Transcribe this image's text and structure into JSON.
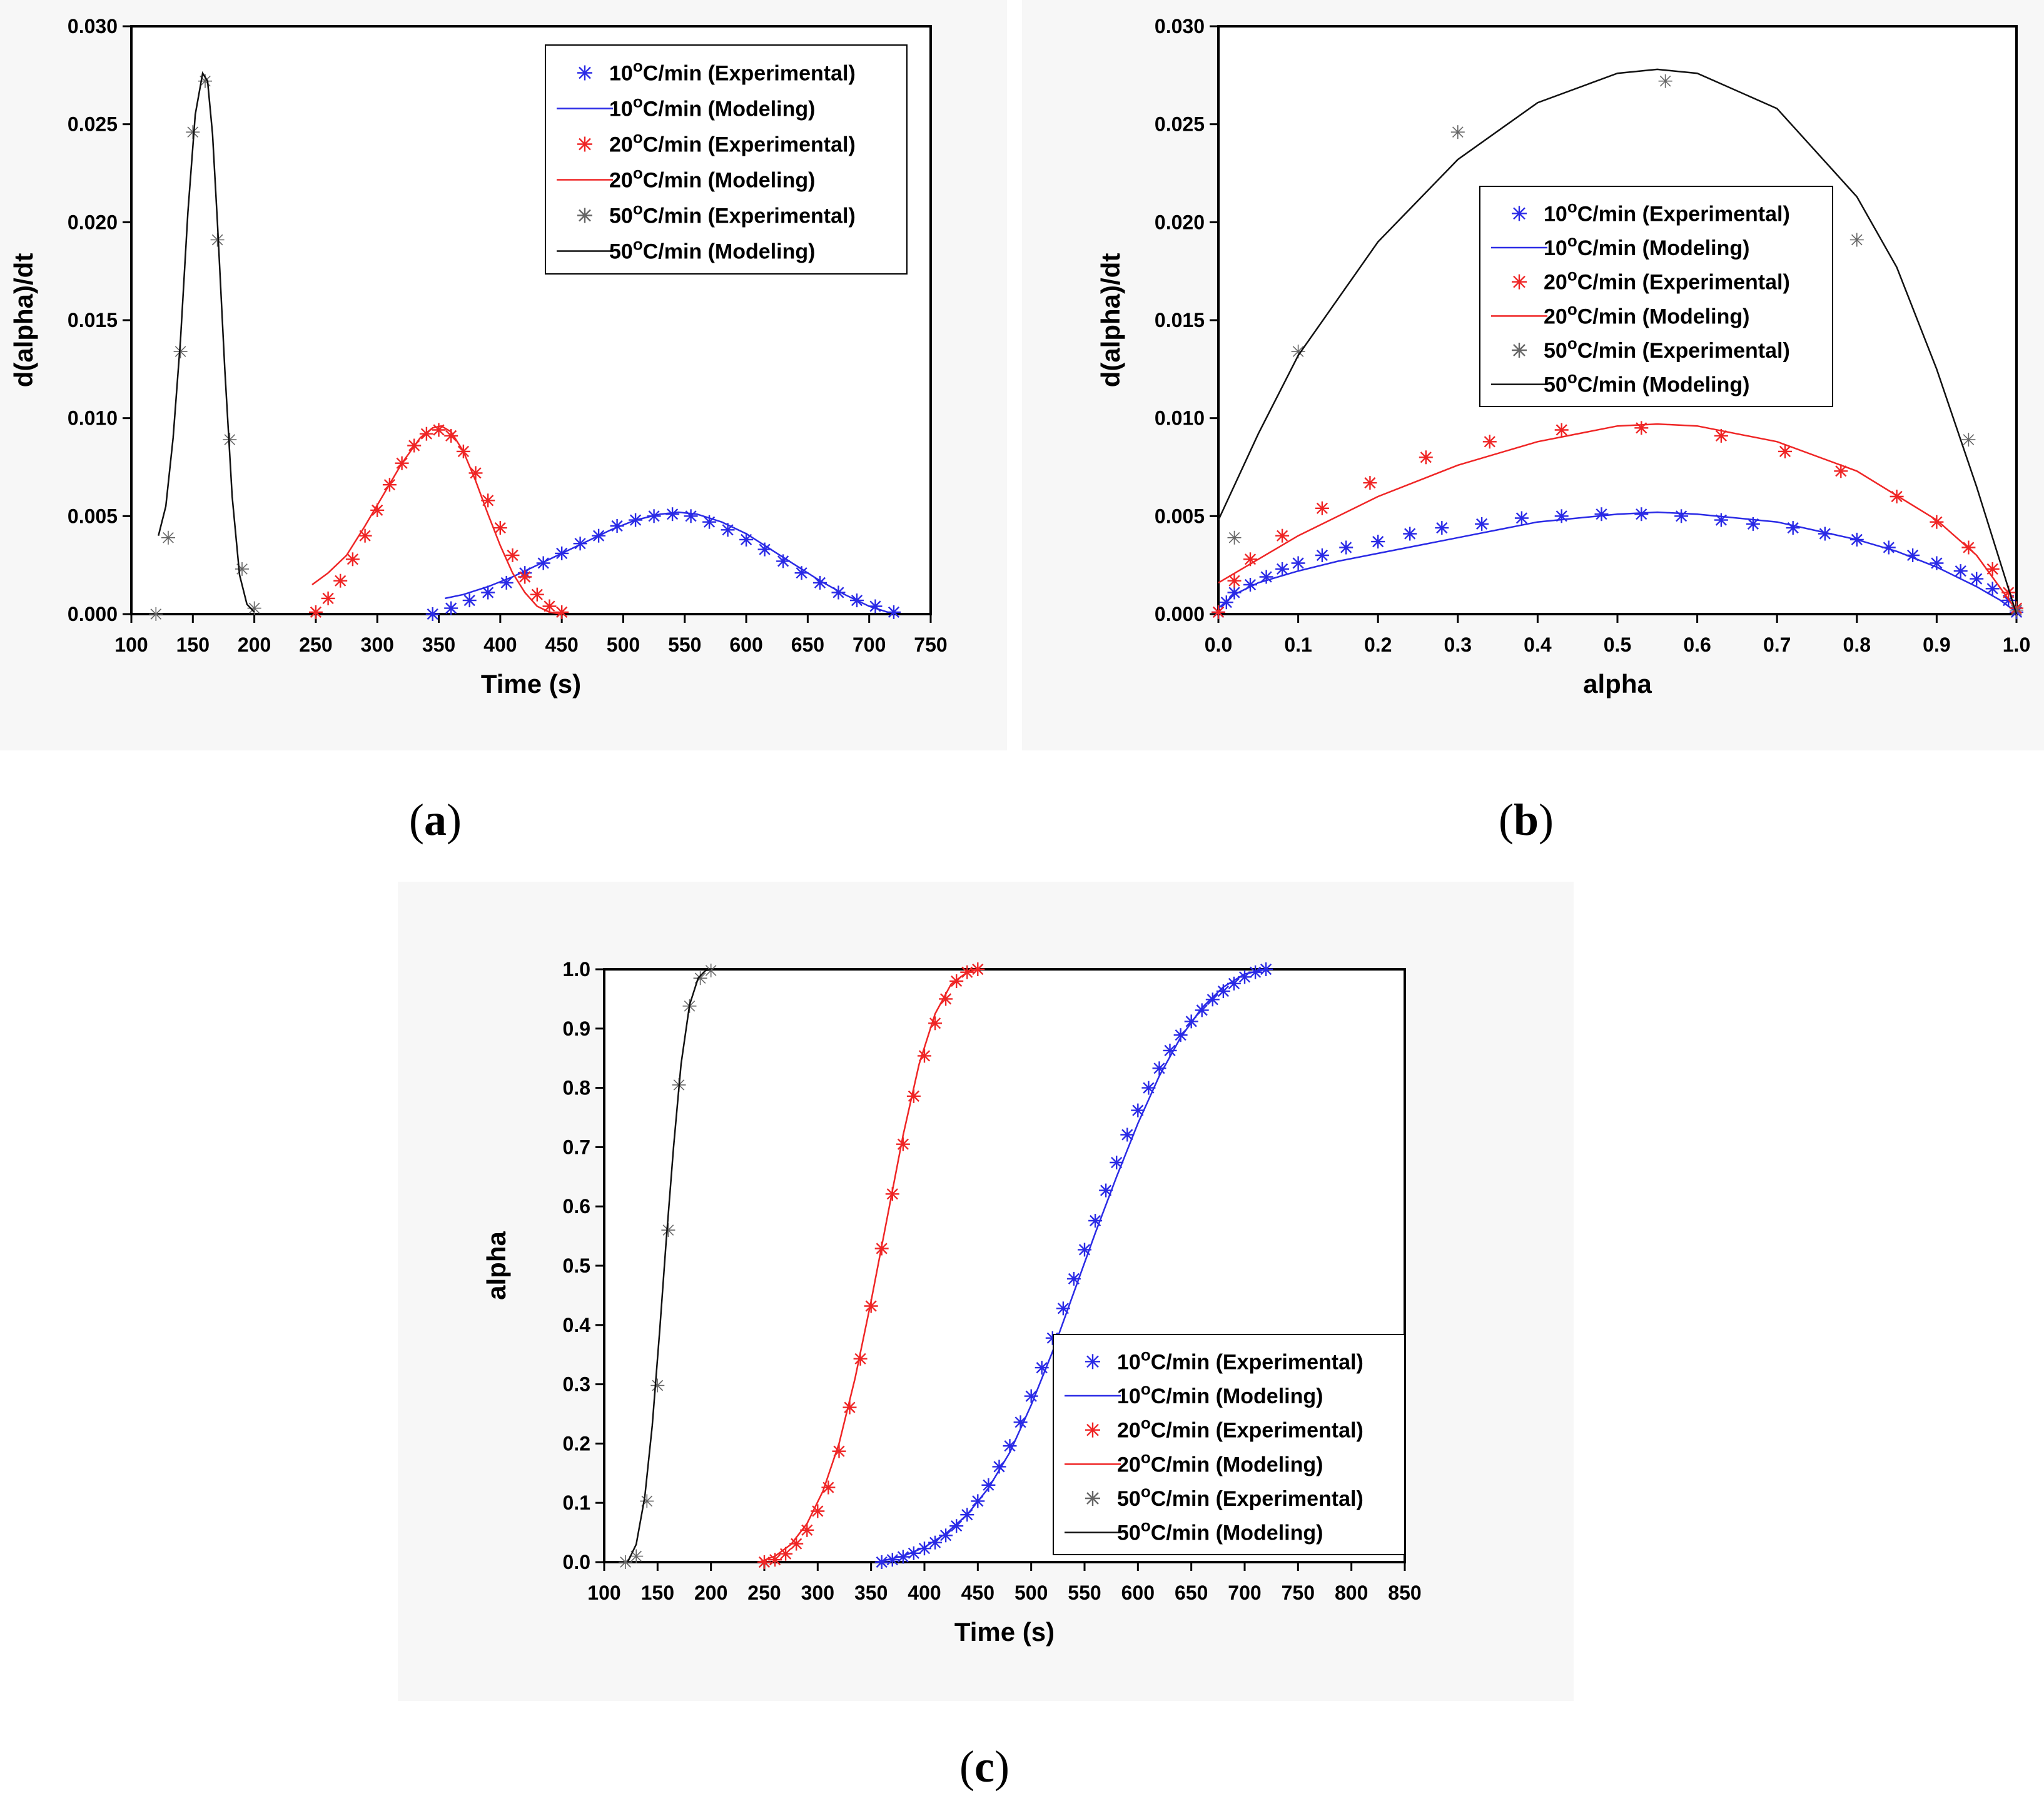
{
  "captions": {
    "a": "a",
    "b": "b",
    "c": "c"
  },
  "colors": {
    "blue": "#2a2ae6",
    "red": "#ef2525",
    "black": "#111111",
    "gray": "#666666"
  },
  "chart_data": [
    {
      "id": "a",
      "type": "line",
      "title": "",
      "xlabel": "Time (s)",
      "ylabel": "d(alpha)/dt",
      "xlim": [
        100,
        750
      ],
      "ylim": [
        0,
        0.03
      ],
      "xticks": [
        "100",
        "150",
        "200",
        "250",
        "300",
        "350",
        "400",
        "450",
        "500",
        "550",
        "600",
        "650",
        "700",
        "750"
      ],
      "yticks": [
        "0.000",
        "0.005",
        "0.010",
        "0.015",
        "0.020",
        "0.025",
        "0.030"
      ],
      "legend_position": "top-right",
      "series": [
        {
          "name": "10°C/min (Experimental)",
          "color": "blue",
          "kind": "marker",
          "x": [
            345,
            360,
            375,
            390,
            405,
            420,
            435,
            450,
            465,
            480,
            495,
            510,
            525,
            540,
            555,
            570,
            585,
            600,
            615,
            630,
            645,
            660,
            675,
            690,
            705,
            720
          ],
          "y": [
            0.0,
            0.0003,
            0.0007,
            0.0011,
            0.0016,
            0.0021,
            0.0026,
            0.0031,
            0.0036,
            0.004,
            0.0045,
            0.0048,
            0.005,
            0.0051,
            0.005,
            0.0047,
            0.0043,
            0.0038,
            0.0033,
            0.0027,
            0.0021,
            0.0016,
            0.0011,
            0.0007,
            0.0004,
            0.0001
          ]
        },
        {
          "name": "10°C/min (Modeling)",
          "color": "blue",
          "kind": "line",
          "x": [
            355,
            370,
            390,
            410,
            430,
            450,
            470,
            490,
            510,
            530,
            545,
            560,
            580,
            600,
            620,
            640,
            660,
            680,
            700,
            715
          ],
          "y": [
            0.0008,
            0.001,
            0.0014,
            0.0019,
            0.0025,
            0.0031,
            0.0037,
            0.0043,
            0.0048,
            0.0051,
            0.0052,
            0.0051,
            0.0047,
            0.0041,
            0.0033,
            0.0025,
            0.0017,
            0.001,
            0.0004,
            0.0001
          ]
        },
        {
          "name": "20°C/min (Experimental)",
          "color": "red",
          "kind": "marker",
          "x": [
            250,
            260,
            270,
            280,
            290,
            300,
            310,
            320,
            330,
            340,
            350,
            360,
            370,
            380,
            390,
            400,
            410,
            420,
            430,
            440,
            450
          ],
          "y": [
            0.0001,
            0.0008,
            0.0017,
            0.0028,
            0.004,
            0.0053,
            0.0066,
            0.0077,
            0.0086,
            0.0092,
            0.0094,
            0.0091,
            0.0083,
            0.0072,
            0.0058,
            0.0044,
            0.003,
            0.0019,
            0.001,
            0.0004,
            0.0001
          ]
        },
        {
          "name": "20°C/min (Modeling)",
          "color": "red",
          "kind": "line",
          "x": [
            247,
            260,
            275,
            290,
            305,
            320,
            335,
            345,
            352,
            360,
            370,
            380,
            390,
            400,
            410,
            420,
            430,
            440,
            450
          ],
          "y": [
            0.0015,
            0.0021,
            0.003,
            0.0045,
            0.0061,
            0.0077,
            0.009,
            0.0095,
            0.0096,
            0.0093,
            0.0083,
            0.0068,
            0.0051,
            0.0035,
            0.0021,
            0.0011,
            0.0004,
            0.0001,
            0.0
          ]
        },
        {
          "name": "50°C/min (Experimental)",
          "color": "gray",
          "kind": "marker",
          "x": [
            120,
            130,
            140,
            150,
            160,
            170,
            180,
            190,
            200
          ],
          "y": [
            0.0,
            0.0039,
            0.0134,
            0.0246,
            0.0272,
            0.0191,
            0.0089,
            0.0023,
            0.0003
          ]
        },
        {
          "name": "50°C/min (Modeling)",
          "color": "black",
          "kind": "line",
          "x": [
            122,
            128,
            134,
            140,
            146,
            152,
            158,
            162,
            166,
            170,
            176,
            182,
            188,
            194,
            200
          ],
          "y": [
            0.004,
            0.0055,
            0.009,
            0.014,
            0.0205,
            0.0255,
            0.0276,
            0.0272,
            0.0245,
            0.02,
            0.0125,
            0.006,
            0.002,
            0.0005,
            0.0001
          ]
        }
      ]
    },
    {
      "id": "b",
      "type": "line",
      "title": "",
      "xlabel": "alpha",
      "ylabel": "d(alpha)/dt",
      "xlim": [
        0,
        1
      ],
      "ylim": [
        0,
        0.03
      ],
      "xticks": [
        "0.0",
        "0.1",
        "0.2",
        "0.3",
        "0.4",
        "0.5",
        "0.6",
        "0.7",
        "0.8",
        "0.9",
        "1.0"
      ],
      "yticks": [
        "0.000",
        "0.005",
        "0.010",
        "0.015",
        "0.020",
        "0.025",
        "0.030"
      ],
      "legend_position": "center-right",
      "series": [
        {
          "name": "10°C/min (Experimental)",
          "color": "blue",
          "kind": "marker",
          "x": [
            0.0,
            0.01,
            0.02,
            0.04,
            0.06,
            0.08,
            0.1,
            0.13,
            0.16,
            0.2,
            0.24,
            0.28,
            0.33,
            0.38,
            0.43,
            0.48,
            0.53,
            0.58,
            0.63,
            0.67,
            0.72,
            0.76,
            0.8,
            0.84,
            0.87,
            0.9,
            0.93,
            0.95,
            0.97,
            0.99,
            1.0
          ],
          "y": [
            0.0001,
            0.0006,
            0.0011,
            0.0015,
            0.0019,
            0.0023,
            0.0026,
            0.003,
            0.0034,
            0.0037,
            0.0041,
            0.0044,
            0.0046,
            0.0049,
            0.005,
            0.0051,
            0.0051,
            0.005,
            0.0048,
            0.0046,
            0.0044,
            0.0041,
            0.0038,
            0.0034,
            0.003,
            0.0026,
            0.0022,
            0.0018,
            0.0013,
            0.0007,
            0.0001
          ]
        },
        {
          "name": "10°C/min (Modeling)",
          "color": "blue",
          "kind": "line",
          "x": [
            0.0,
            0.02,
            0.05,
            0.1,
            0.15,
            0.2,
            0.3,
            0.4,
            0.5,
            0.55,
            0.6,
            0.7,
            0.8,
            0.85,
            0.9,
            0.95,
            0.98,
            1.0
          ],
          "y": [
            0.0003,
            0.001,
            0.0016,
            0.0022,
            0.0027,
            0.0031,
            0.0039,
            0.0047,
            0.0051,
            0.0052,
            0.0051,
            0.0047,
            0.0038,
            0.0032,
            0.0024,
            0.0014,
            0.0007,
            0.0001
          ]
        },
        {
          "name": "20°C/min (Experimental)",
          "color": "red",
          "kind": "marker",
          "x": [
            0.0,
            0.02,
            0.04,
            0.08,
            0.13,
            0.19,
            0.26,
            0.34,
            0.43,
            0.53,
            0.63,
            0.71,
            0.78,
            0.85,
            0.9,
            0.94,
            0.97,
            0.99,
            1.0
          ],
          "y": [
            0.0001,
            0.0017,
            0.0028,
            0.004,
            0.0054,
            0.0067,
            0.008,
            0.0088,
            0.0094,
            0.0095,
            0.0091,
            0.0083,
            0.0073,
            0.006,
            0.0047,
            0.0034,
            0.0023,
            0.0011,
            0.0003
          ]
        },
        {
          "name": "20°C/min (Modeling)",
          "color": "red",
          "kind": "line",
          "x": [
            0.0,
            0.05,
            0.1,
            0.2,
            0.3,
            0.4,
            0.5,
            0.55,
            0.6,
            0.7,
            0.8,
            0.9,
            0.95,
            1.0
          ],
          "y": [
            0.0016,
            0.0028,
            0.004,
            0.006,
            0.0076,
            0.0088,
            0.0096,
            0.0097,
            0.0096,
            0.0088,
            0.0073,
            0.0048,
            0.003,
            0.0002
          ]
        },
        {
          "name": "50°C/min (Experimental)",
          "color": "gray",
          "kind": "marker",
          "x": [
            0.02,
            0.1,
            0.3,
            0.56,
            0.8,
            0.94,
            1.0
          ],
          "y": [
            0.0039,
            0.0134,
            0.0246,
            0.0272,
            0.0191,
            0.0089,
            0.0002
          ]
        },
        {
          "name": "50°C/min (Modeling)",
          "color": "black",
          "kind": "line",
          "x": [
            0.0,
            0.05,
            0.1,
            0.2,
            0.3,
            0.4,
            0.5,
            0.55,
            0.6,
            0.7,
            0.8,
            0.85,
            0.9,
            0.95,
            1.0
          ],
          "y": [
            0.0048,
            0.0092,
            0.0132,
            0.019,
            0.0232,
            0.0261,
            0.0276,
            0.0278,
            0.0276,
            0.0258,
            0.0213,
            0.0177,
            0.0125,
            0.0065,
            0.0
          ]
        }
      ]
    },
    {
      "id": "c",
      "type": "line",
      "title": "",
      "xlabel": "Time (s)",
      "ylabel": "alpha",
      "xlim": [
        100,
        850
      ],
      "ylim": [
        0,
        1
      ],
      "xticks": [
        "100",
        "150",
        "200",
        "250",
        "300",
        "350",
        "400",
        "450",
        "500",
        "550",
        "600",
        "650",
        "700",
        "750",
        "800",
        "850"
      ],
      "yticks": [
        "0.0",
        "0.1",
        "0.2",
        "0.3",
        "0.4",
        "0.5",
        "0.6",
        "0.7",
        "0.8",
        "0.9",
        "1.0"
      ],
      "legend_position": "bottom-right",
      "series": [
        {
          "name": "10°C/min (Experimental)",
          "color": "blue",
          "kind": "marker",
          "x": [
            360,
            370,
            380,
            390,
            400,
            410,
            420,
            430,
            440,
            450,
            460,
            470,
            480,
            490,
            500,
            510,
            520,
            530,
            540,
            550,
            560,
            570,
            580,
            590,
            600,
            610,
            620,
            630,
            640,
            650,
            660,
            670,
            680,
            690,
            700,
            710,
            720
          ],
          "y": [
            0.0,
            0.004,
            0.009,
            0.015,
            0.023,
            0.033,
            0.045,
            0.061,
            0.08,
            0.103,
            0.13,
            0.161,
            0.196,
            0.236,
            0.28,
            0.328,
            0.378,
            0.428,
            0.478,
            0.527,
            0.576,
            0.627,
            0.674,
            0.721,
            0.762,
            0.8,
            0.833,
            0.863,
            0.889,
            0.912,
            0.931,
            0.949,
            0.963,
            0.976,
            0.987,
            0.995,
            1.0
          ]
        },
        {
          "name": "10°C/min (Modeling)",
          "color": "blue",
          "kind": "line",
          "x": [
            355,
            380,
            400,
            420,
            440,
            460,
            480,
            500,
            520,
            540,
            560,
            580,
            600,
            620,
            640,
            660,
            680,
            700,
            720
          ],
          "y": [
            0.0,
            0.01,
            0.025,
            0.048,
            0.08,
            0.125,
            0.185,
            0.265,
            0.355,
            0.455,
            0.555,
            0.65,
            0.74,
            0.82,
            0.885,
            0.935,
            0.97,
            0.992,
            1.0
          ]
        },
        {
          "name": "20°C/min (Experimental)",
          "color": "red",
          "kind": "marker",
          "x": [
            250,
            260,
            270,
            280,
            290,
            300,
            310,
            320,
            330,
            340,
            350,
            360,
            370,
            380,
            390,
            400,
            410,
            420,
            430,
            440,
            450
          ],
          "y": [
            0.0,
            0.004,
            0.014,
            0.031,
            0.054,
            0.086,
            0.126,
            0.187,
            0.261,
            0.343,
            0.432,
            0.529,
            0.621,
            0.705,
            0.786,
            0.854,
            0.909,
            0.95,
            0.98,
            0.995,
            1.0
          ]
        },
        {
          "name": "20°C/min (Modeling)",
          "color": "red",
          "kind": "line",
          "x": [
            245,
            260,
            275,
            290,
            305,
            320,
            335,
            350,
            365,
            380,
            395,
            410,
            425,
            440,
            450
          ],
          "y": [
            0.0,
            0.01,
            0.03,
            0.065,
            0.12,
            0.2,
            0.31,
            0.44,
            0.58,
            0.72,
            0.84,
            0.925,
            0.975,
            0.995,
            1.0
          ]
        },
        {
          "name": "50°C/min (Experimental)",
          "color": "gray",
          "kind": "marker",
          "x": [
            120,
            130,
            140,
            150,
            160,
            170,
            180,
            190,
            200
          ],
          "y": [
            0.0,
            0.01,
            0.103,
            0.298,
            0.56,
            0.805,
            0.938,
            0.985,
            0.998
          ]
        },
        {
          "name": "50°C/min (Modeling)",
          "color": "black",
          "kind": "line",
          "x": [
            122,
            130,
            138,
            145,
            152,
            158,
            165,
            172,
            180,
            188,
            195,
            200
          ],
          "y": [
            0.0,
            0.03,
            0.11,
            0.23,
            0.39,
            0.54,
            0.7,
            0.84,
            0.94,
            0.985,
            0.998,
            1.0
          ]
        }
      ]
    }
  ]
}
